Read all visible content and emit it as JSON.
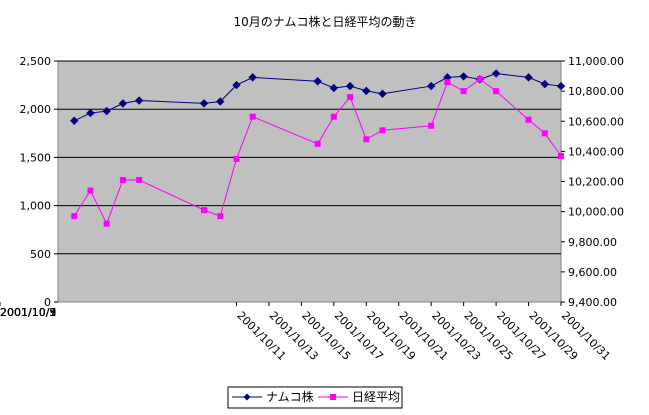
{
  "chart_data": {
    "type": "line",
    "title": "10月のナムコ株と日経平均の動き",
    "x_tick_labels": [
      "2001/10/1",
      "2001/10/3",
      "2001/10/5",
      "2001/10/7",
      "2001/10/9",
      "2001/10/11",
      "2001/10/13",
      "2001/10/15",
      "2001/10/17",
      "2001/10/19",
      "2001/10/21",
      "2001/10/23",
      "2001/10/25",
      "2001/10/27",
      "2001/10/29",
      "2001/10/31"
    ],
    "x_range": [
      "2001/09/30",
      "2001/10/31"
    ],
    "y_left": {
      "min": 0,
      "max": 2500,
      "step": 500,
      "ticks": [
        "0",
        "500",
        "1,000",
        "1,500",
        "2,000",
        "2,500"
      ]
    },
    "y_right": {
      "min": 9400,
      "max": 11000,
      "step": 200,
      "ticks": [
        "9,400.00",
        "9,600.00",
        "9,800.00",
        "10,000.00",
        "10,200.00",
        "10,400.00",
        "10,600.00",
        "10,800.00",
        "11,000.00"
      ]
    },
    "grid": "horizontal",
    "legend_position": "bottom",
    "series": [
      {
        "name": "ナムコ株",
        "axis": "left",
        "color": "#000080",
        "marker": "diamond",
        "points": [
          [
            "2001/10/01",
            1880
          ],
          [
            "2001/10/02",
            1960
          ],
          [
            "2001/10/03",
            1980
          ],
          [
            "2001/10/04",
            2060
          ],
          [
            "2001/10/05",
            2090
          ],
          [
            "2001/10/09",
            2060
          ],
          [
            "2001/10/10",
            2080
          ],
          [
            "2001/10/11",
            2250
          ],
          [
            "2001/10/12",
            2330
          ],
          [
            "2001/10/16",
            2290
          ],
          [
            "2001/10/17",
            2220
          ],
          [
            "2001/10/18",
            2240
          ],
          [
            "2001/10/19",
            2190
          ],
          [
            "2001/10/20",
            2160
          ],
          [
            "2001/10/23",
            2240
          ],
          [
            "2001/10/24",
            2330
          ],
          [
            "2001/10/25",
            2340
          ],
          [
            "2001/10/26",
            2310
          ],
          [
            "2001/10/27",
            2370
          ],
          [
            "2001/10/29",
            2330
          ],
          [
            "2001/10/30",
            2260
          ],
          [
            "2001/10/31",
            2240
          ]
        ]
      },
      {
        "name": "日経平均",
        "axis": "right",
        "color": "#ff00ff",
        "marker": "square",
        "points": [
          [
            "2001/10/01",
            9970
          ],
          [
            "2001/10/02",
            10140
          ],
          [
            "2001/10/03",
            9920
          ],
          [
            "2001/10/04",
            10210
          ],
          [
            "2001/10/05",
            10210
          ],
          [
            "2001/10/09",
            10010
          ],
          [
            "2001/10/10",
            9970
          ],
          [
            "2001/10/11",
            10350
          ],
          [
            "2001/10/12",
            10630
          ],
          [
            "2001/10/16",
            10450
          ],
          [
            "2001/10/17",
            10630
          ],
          [
            "2001/10/18",
            10760
          ],
          [
            "2001/10/19",
            10480
          ],
          [
            "2001/10/20",
            10540
          ],
          [
            "2001/10/23",
            10570
          ],
          [
            "2001/10/24",
            10860
          ],
          [
            "2001/10/25",
            10800
          ],
          [
            "2001/10/26",
            10880
          ],
          [
            "2001/10/27",
            10800
          ],
          [
            "2001/10/29",
            10610
          ],
          [
            "2001/10/30",
            10520
          ],
          [
            "2001/10/31",
            10370
          ]
        ]
      }
    ]
  },
  "colors": {
    "plot_bg": "#c0c0c0",
    "grid": "#000000"
  }
}
